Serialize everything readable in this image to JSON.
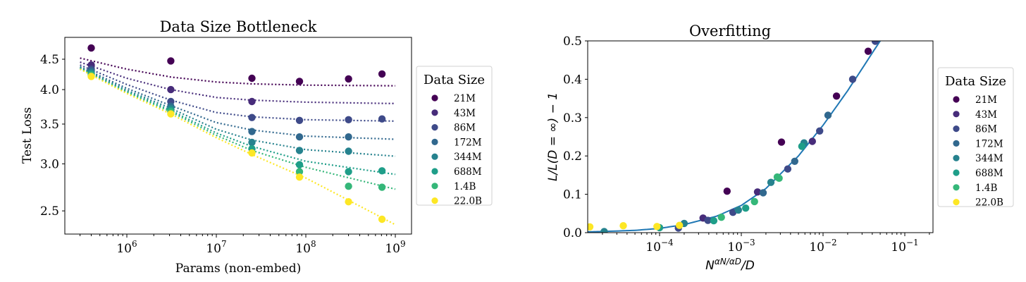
{
  "chart_data": [
    {
      "id": "left",
      "type": "scatter",
      "title": "Data Size Bottleneck",
      "xlabel": "Params (non-embed)",
      "ylabel": "Test Loss",
      "xscale": "log",
      "yscale": "log",
      "xlim": [
        205000,
        1500000000
      ],
      "ylim": [
        2.3,
        4.8
      ],
      "xticks": [
        {
          "value": 1000000,
          "base": "10",
          "exp": "6"
        },
        {
          "value": 10000000,
          "base": "10",
          "exp": "7"
        },
        {
          "value": 100000000,
          "base": "10",
          "exp": "8"
        },
        {
          "value": 1000000000,
          "base": "10",
          "exp": "9"
        }
      ],
      "yticks": [
        {
          "value": 2.5,
          "label": "2.5"
        },
        {
          "value": 3.0,
          "label": "3.0"
        },
        {
          "value": 3.5,
          "label": "3.5"
        },
        {
          "value": 4.0,
          "label": "4.0"
        },
        {
          "value": 4.5,
          "label": "4.5"
        }
      ],
      "grid": false,
      "legend": {
        "title": "Data Size",
        "placement": "right-outside"
      },
      "fit_line_style": "dotted",
      "series": [
        {
          "name": "21M",
          "color": "#440154",
          "points": [
            [
              400000,
              4.7
            ],
            [
              3100000,
              4.47
            ],
            [
              25000000,
              4.18
            ],
            [
              85000000,
              4.13
            ],
            [
              300000000,
              4.17
            ],
            [
              710000000,
              4.25
            ]
          ],
          "fit": [
            [
              300000,
              4.52
            ],
            [
              1000000,
              4.33
            ],
            [
              3100000,
              4.2
            ],
            [
              10000000,
              4.12
            ],
            [
              25000000,
              4.09
            ],
            [
              100000000,
              4.07
            ],
            [
              1000000000,
              4.06
            ]
          ]
        },
        {
          "name": "43M",
          "color": "#472c7a",
          "points": [
            [
              400000,
              4.4
            ],
            [
              3100000,
              4.0
            ],
            [
              25000000,
              3.82
            ]
          ],
          "fit": [
            [
              300000,
              4.45
            ],
            [
              1000000,
              4.18
            ],
            [
              3100000,
              4.0
            ],
            [
              10000000,
              3.88
            ],
            [
              25000000,
              3.84
            ],
            [
              100000000,
              3.81
            ],
            [
              1000000000,
              3.79
            ]
          ]
        },
        {
          "name": "86M",
          "color": "#3e4a89",
          "points": [
            [
              400000,
              4.33
            ],
            [
              3100000,
              3.82
            ],
            [
              25000000,
              3.59
            ],
            [
              85000000,
              3.55
            ],
            [
              300000000,
              3.56
            ],
            [
              710000000,
              3.57
            ]
          ],
          "fit": [
            [
              300000,
              4.4
            ],
            [
              1000000,
              4.08
            ],
            [
              3100000,
              3.84
            ],
            [
              10000000,
              3.66
            ],
            [
              25000000,
              3.6
            ],
            [
              100000000,
              3.56
            ],
            [
              1000000000,
              3.54
            ]
          ]
        },
        {
          "name": "172M",
          "color": "#31688e",
          "points": [
            [
              400000,
              4.3
            ],
            [
              3100000,
              3.75
            ],
            [
              25000000,
              3.4
            ],
            [
              85000000,
              3.33
            ],
            [
              300000000,
              3.33
            ]
          ],
          "fit": [
            [
              300000,
              4.37
            ],
            [
              1000000,
              4.02
            ],
            [
              3100000,
              3.76
            ],
            [
              10000000,
              3.52
            ],
            [
              25000000,
              3.42
            ],
            [
              100000000,
              3.34
            ],
            [
              1000000000,
              3.3
            ]
          ]
        },
        {
          "name": "344M",
          "color": "#26828e",
          "points": [
            [
              400000,
              4.27
            ],
            [
              3100000,
              3.72
            ],
            [
              25000000,
              3.26
            ],
            [
              85000000,
              3.16
            ],
            [
              300000000,
              3.15
            ]
          ],
          "fit": [
            [
              300000,
              4.36
            ],
            [
              1000000,
              3.99
            ],
            [
              3100000,
              3.72
            ],
            [
              10000000,
              3.43
            ],
            [
              25000000,
              3.29
            ],
            [
              100000000,
              3.17
            ],
            [
              1000000000,
              3.09
            ]
          ]
        },
        {
          "name": "688M",
          "color": "#1f9e89",
          "points": [
            [
              400000,
              4.25
            ],
            [
              3100000,
              3.69
            ],
            [
              25000000,
              3.18
            ],
            [
              85000000,
              2.99
            ],
            [
              300000000,
              2.91
            ],
            [
              710000000,
              2.92
            ]
          ],
          "fit": [
            [
              300000,
              4.35
            ],
            [
              1000000,
              3.97
            ],
            [
              3100000,
              3.69
            ],
            [
              10000000,
              3.38
            ],
            [
              25000000,
              3.21
            ],
            [
              100000000,
              3.03
            ],
            [
              1000000000,
              2.88
            ]
          ]
        },
        {
          "name": "1.4B",
          "color": "#35b779",
          "points": [
            [
              400000,
              4.23
            ],
            [
              3100000,
              3.67
            ],
            [
              85000000,
              2.91
            ],
            [
              300000000,
              2.75
            ],
            [
              710000000,
              2.74
            ]
          ],
          "fit": [
            [
              300000,
              4.34
            ],
            [
              1000000,
              3.96
            ],
            [
              3100000,
              3.67
            ],
            [
              10000000,
              3.35
            ],
            [
              25000000,
              3.16
            ],
            [
              100000000,
              2.96
            ],
            [
              1000000000,
              2.72
            ]
          ]
        },
        {
          "name": "22.0B",
          "color": "#fde725",
          "points": [
            [
              400000,
              4.21
            ],
            [
              3100000,
              3.64
            ],
            [
              25000000,
              3.13
            ],
            [
              85000000,
              2.85
            ],
            [
              300000000,
              2.59
            ],
            [
              710000000,
              2.42
            ]
          ],
          "fit": [
            [
              300000,
              4.33
            ],
            [
              1000000,
              3.94
            ],
            [
              3100000,
              3.64
            ],
            [
              10000000,
              3.32
            ],
            [
              25000000,
              3.11
            ],
            [
              100000000,
              2.84
            ],
            [
              1000000000,
              2.37
            ]
          ]
        }
      ]
    },
    {
      "id": "right",
      "type": "scatter",
      "title": "Overfitting",
      "xlabel": "N^(αN/αD)/D",
      "xlabel_parts": {
        "base": "N",
        "sup": "αN/αD",
        "tail": "/D"
      },
      "ylabel": "L/L(D = ∞) − 1",
      "xscale": "log",
      "yscale": "linear",
      "xlim": [
        1.25e-05,
        0.22
      ],
      "ylim": [
        0.0,
        0.5
      ],
      "xticks": [
        {
          "value": 0.0001,
          "base": "10",
          "exp": "−4"
        },
        {
          "value": 0.001,
          "base": "10",
          "exp": "−3"
        },
        {
          "value": 0.01,
          "base": "10",
          "exp": "−2"
        },
        {
          "value": 0.1,
          "base": "10",
          "exp": "−1"
        }
      ],
      "yticks": [
        {
          "value": 0.0,
          "label": "0.0"
        },
        {
          "value": 0.1,
          "label": "0.1"
        },
        {
          "value": 0.2,
          "label": "0.2"
        },
        {
          "value": 0.3,
          "label": "0.3"
        },
        {
          "value": 0.4,
          "label": "0.4"
        },
        {
          "value": 0.5,
          "label": "0.5"
        }
      ],
      "grid": false,
      "legend": {
        "title": "Data Size",
        "placement": "right-outside"
      },
      "fit_line": {
        "color": "#1f77b4",
        "style": "solid",
        "points": [
          [
            1.25e-05,
            0.002
          ],
          [
            2e-05,
            0.003
          ],
          [
            5e-05,
            0.006
          ],
          [
            0.0001,
            0.011
          ],
          [
            0.0002,
            0.021
          ],
          [
            0.0005,
            0.043
          ],
          [
            0.001,
            0.071
          ],
          [
            0.002,
            0.115
          ],
          [
            0.005,
            0.2
          ],
          [
            0.01,
            0.28
          ],
          [
            0.02,
            0.37
          ],
          [
            0.05,
            0.5
          ]
        ]
      },
      "series": [
        {
          "name": "21M",
          "color": "#440154",
          "points": [
            [
              0.00067,
              0.108
            ],
            [
              0.0031,
              0.236
            ],
            [
              0.0146,
              0.356
            ],
            [
              0.0356,
              0.473
            ]
          ]
        },
        {
          "name": "43M",
          "color": "#472c7a",
          "points": [
            [
              0.00034,
              0.038
            ],
            [
              0.00158,
              0.106
            ],
            [
              0.0074,
              0.238
            ]
          ]
        },
        {
          "name": "86M",
          "color": "#3e4a89",
          "points": [
            [
              0.00017,
              0.012
            ],
            [
              0.00039,
              0.032
            ],
            [
              0.00079,
              0.053
            ],
            [
              0.0037,
              0.166
            ],
            [
              0.0091,
              0.265
            ],
            [
              0.023,
              0.4
            ],
            [
              0.0435,
              0.499
            ]
          ]
        },
        {
          "name": "172M",
          "color": "#31688e",
          "points": [
            [
              0.00185,
              0.104
            ],
            [
              0.0045,
              0.186
            ],
            [
              0.0115,
              0.306
            ]
          ]
        },
        {
          "name": "344M",
          "color": "#26828e",
          "points": [
            [
              2.1e-05,
              0.003
            ],
            [
              0.0002,
              0.024
            ],
            [
              0.00092,
              0.059
            ],
            [
              0.0023,
              0.131
            ],
            [
              0.00585,
              0.234
            ]
          ]
        },
        {
          "name": "688M",
          "color": "#1f9e89",
          "points": [
            [
              0.0001,
              0.013
            ],
            [
              0.00046,
              0.031
            ],
            [
              0.00113,
              0.064
            ],
            [
              0.0055,
              0.225
            ]
          ]
        },
        {
          "name": "1.4B",
          "color": "#35b779",
          "points": [
            [
              0.00057,
              0.04
            ],
            [
              0.00145,
              0.081
            ],
            [
              0.00275,
              0.145
            ],
            [
              0.0029,
              0.142
            ]
          ]
        },
        {
          "name": "22.0B",
          "color": "#fde725",
          "points": [
            [
              1.4e-05,
              0.015
            ],
            [
              3.6e-05,
              0.018
            ],
            [
              9.3e-05,
              0.016
            ],
            [
              0.000175,
              0.019
            ]
          ]
        }
      ]
    }
  ]
}
